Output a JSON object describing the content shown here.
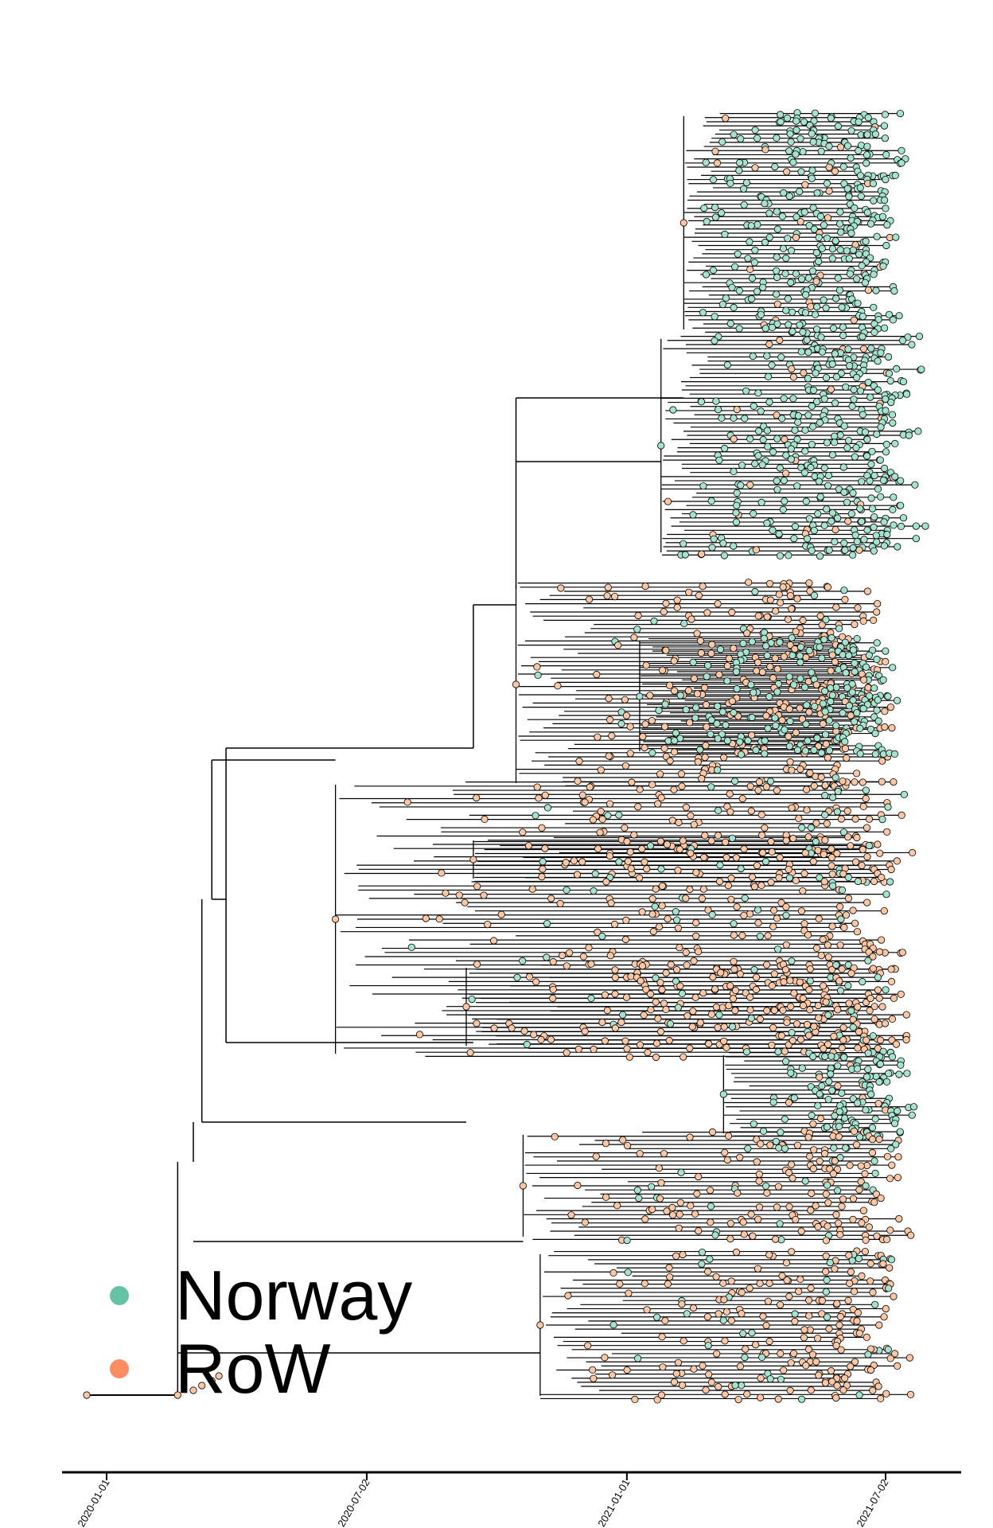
{
  "chart_data": {
    "type": "scatter",
    "subtype": "time-scaled phylogenetic tree",
    "title": "",
    "xlabel": "",
    "ylabel": "",
    "x_axis": {
      "type": "date",
      "range": [
        "2019-12-05",
        "2021-08-20"
      ],
      "ticks": [
        "2020-01-01",
        "2020-07-02",
        "2021-01-01",
        "2021-07-02"
      ],
      "tick_labels": [
        "2020-01-01",
        "2020-07-02",
        "2021-01-01",
        "2021-07-02"
      ]
    },
    "y_axis": {
      "shown": false
    },
    "grid": false,
    "legend": {
      "placement": "bottom-left",
      "entries": [
        {
          "label": "Norway",
          "color": "#66c2a5"
        },
        {
          "label": "RoW",
          "color": "#fc8d62"
        }
      ]
    },
    "node_fill": {
      "Norway": "#a6e3cf",
      "RoW": "#fcc7a4"
    },
    "clades": [
      {
        "location": "Norway",
        "root_date": "2021-02-10",
        "first_tip_date": "2021-03-10",
        "last_tip_date": "2021-07-10"
      },
      {
        "location": "Norway",
        "root_date": "2021-01-25",
        "first_tip_date": "2021-03-01",
        "last_tip_date": "2021-07-20"
      },
      {
        "location": "RoW",
        "root_date": "2020-10-15",
        "first_tip_date": "2020-12-20",
        "last_tip_date": "2021-07-05"
      },
      {
        "location": "Norway",
        "root_date": "2021-01-10",
        "first_tip_date": "2021-03-05",
        "last_tip_date": "2021-07-10"
      },
      {
        "location": "RoW",
        "root_date": "2020-06-10",
        "first_tip_date": "2020-12-10",
        "last_tip_date": "2021-07-15"
      },
      {
        "location": "RoW",
        "root_date": "2020-09-15",
        "first_tip_date": "2020-11-20",
        "last_tip_date": "2021-07-10"
      },
      {
        "location": "RoW",
        "root_date": "2020-09-10",
        "first_tip_date": "2020-12-15",
        "last_tip_date": "2021-07-15"
      },
      {
        "location": "Norway",
        "root_date": "2021-03-10",
        "first_tip_date": "2021-04-01",
        "last_tip_date": "2021-07-20"
      },
      {
        "location": "RoW",
        "root_date": "2020-10-20",
        "first_tip_date": "2021-01-20",
        "last_tip_date": "2021-07-20"
      },
      {
        "location": "RoW",
        "root_date": "2020-11-01",
        "first_tip_date": "2021-01-15",
        "last_tip_date": "2021-07-15"
      }
    ]
  }
}
